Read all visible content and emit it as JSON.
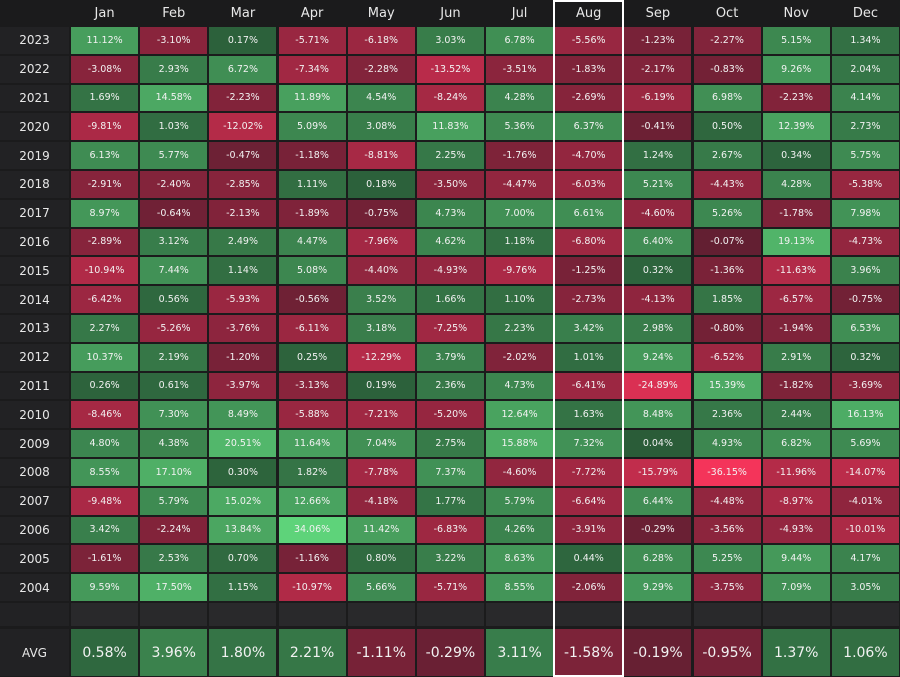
{
  "table": {
    "corner": "",
    "columns": [
      "Jan",
      "Feb",
      "Mar",
      "Apr",
      "May",
      "Jun",
      "Jul",
      "Aug",
      "Sep",
      "Oct",
      "Nov",
      "Dec"
    ],
    "rows": [
      {
        "label": "2023",
        "cells": [
          "11.12%",
          "-3.10%",
          "0.17%",
          "-5.71%",
          "-6.18%",
          "3.03%",
          "6.78%",
          "-5.56%",
          "-1.23%",
          "-2.27%",
          "5.15%",
          "1.34%"
        ]
      },
      {
        "label": "2022",
        "cells": [
          "-3.08%",
          "2.93%",
          "6.72%",
          "-7.34%",
          "-2.28%",
          "-13.52%",
          "-3.51%",
          "-1.83%",
          "-2.17%",
          "-0.83%",
          "9.26%",
          "2.04%"
        ]
      },
      {
        "label": "2021",
        "cells": [
          "1.69%",
          "14.58%",
          "-2.23%",
          "11.89%",
          "4.54%",
          "-8.24%",
          "4.28%",
          "-2.69%",
          "-6.19%",
          "6.98%",
          "-2.23%",
          "4.14%"
        ]
      },
      {
        "label": "2020",
        "cells": [
          "-9.81%",
          "1.03%",
          "-12.02%",
          "5.09%",
          "3.08%",
          "11.83%",
          "5.36%",
          "6.37%",
          "-0.41%",
          "0.50%",
          "12.39%",
          "2.73%"
        ]
      },
      {
        "label": "2019",
        "cells": [
          "6.13%",
          "5.77%",
          "-0.47%",
          "-1.18%",
          "-8.81%",
          "2.25%",
          "-1.76%",
          "-4.70%",
          "1.24%",
          "2.67%",
          "0.34%",
          "5.75%"
        ]
      },
      {
        "label": "2018",
        "cells": [
          "-2.91%",
          "-2.40%",
          "-2.85%",
          "1.11%",
          "0.18%",
          "-3.50%",
          "-4.47%",
          "-6.03%",
          "5.21%",
          "-4.43%",
          "4.28%",
          "-5.38%"
        ]
      },
      {
        "label": "2017",
        "cells": [
          "8.97%",
          "-0.64%",
          "-2.13%",
          "-1.89%",
          "-0.75%",
          "4.73%",
          "7.00%",
          "6.61%",
          "-4.60%",
          "5.26%",
          "-1.78%",
          "7.98%"
        ]
      },
      {
        "label": "2016",
        "cells": [
          "-2.89%",
          "3.12%",
          "2.49%",
          "4.47%",
          "-7.96%",
          "4.62%",
          "1.18%",
          "-6.80%",
          "6.40%",
          "-0.07%",
          "19.13%",
          "-4.73%"
        ]
      },
      {
        "label": "2015",
        "cells": [
          "-10.94%",
          "7.44%",
          "1.14%",
          "5.08%",
          "-4.40%",
          "-4.93%",
          "-9.76%",
          "-1.25%",
          "0.32%",
          "-1.36%",
          "-11.63%",
          "3.96%"
        ]
      },
      {
        "label": "2014",
        "cells": [
          "-6.42%",
          "0.56%",
          "-5.93%",
          "-0.56%",
          "3.52%",
          "1.66%",
          "1.10%",
          "-2.73%",
          "-4.13%",
          "1.85%",
          "-6.57%",
          "-0.75%"
        ]
      },
      {
        "label": "2013",
        "cells": [
          "2.27%",
          "-5.26%",
          "-3.76%",
          "-6.11%",
          "3.18%",
          "-7.25%",
          "2.23%",
          "3.42%",
          "2.98%",
          "-0.80%",
          "-1.94%",
          "6.53%"
        ]
      },
      {
        "label": "2012",
        "cells": [
          "10.37%",
          "2.19%",
          "-1.20%",
          "0.25%",
          "-12.29%",
          "3.79%",
          "-2.02%",
          "1.01%",
          "9.24%",
          "-6.52%",
          "2.91%",
          "0.32%"
        ]
      },
      {
        "label": "2011",
        "cells": [
          "0.26%",
          "0.61%",
          "-3.97%",
          "-3.13%",
          "0.19%",
          "2.36%",
          "4.73%",
          "-6.41%",
          "-24.89%",
          "15.39%",
          "-1.82%",
          "-3.69%"
        ]
      },
      {
        "label": "2010",
        "cells": [
          "-8.46%",
          "7.30%",
          "8.49%",
          "-5.88%",
          "-7.21%",
          "-5.20%",
          "12.64%",
          "1.63%",
          "8.48%",
          "2.36%",
          "2.44%",
          "16.13%"
        ]
      },
      {
        "label": "2009",
        "cells": [
          "4.80%",
          "4.38%",
          "20.51%",
          "11.64%",
          "7.04%",
          "2.75%",
          "15.88%",
          "7.32%",
          "0.04%",
          "4.93%",
          "6.82%",
          "5.69%"
        ]
      },
      {
        "label": "2008",
        "cells": [
          "8.55%",
          "17.10%",
          "0.30%",
          "1.82%",
          "-7.78%",
          "7.37%",
          "-4.60%",
          "-7.72%",
          "-15.79%",
          "-36.15%",
          "-11.96%",
          "-14.07%"
        ]
      },
      {
        "label": "2007",
        "cells": [
          "-9.48%",
          "5.79%",
          "15.02%",
          "12.66%",
          "-4.18%",
          "1.77%",
          "5.79%",
          "-6.64%",
          "6.44%",
          "-4.48%",
          "-8.97%",
          "-4.01%"
        ]
      },
      {
        "label": "2006",
        "cells": [
          "3.42%",
          "-2.24%",
          "13.84%",
          "34.06%",
          "11.42%",
          "-6.83%",
          "4.26%",
          "-3.91%",
          "-0.29%",
          "-3.56%",
          "-4.93%",
          "-10.01%"
        ]
      },
      {
        "label": "2005",
        "cells": [
          "-1.61%",
          "2.53%",
          "0.70%",
          "-1.16%",
          "0.80%",
          "3.22%",
          "8.63%",
          "0.44%",
          "6.28%",
          "5.25%",
          "9.44%",
          "4.17%"
        ]
      },
      {
        "label": "2004",
        "cells": [
          "9.59%",
          "17.50%",
          "1.15%",
          "-10.97%",
          "5.66%",
          "-5.71%",
          "8.55%",
          "-2.06%",
          "9.29%",
          "-3.75%",
          "7.09%",
          "3.05%"
        ]
      }
    ],
    "average": {
      "label": "AVG",
      "cells": [
        "0.58%",
        "3.96%",
        "1.80%",
        "2.21%",
        "-1.11%",
        "-0.29%",
        "3.11%",
        "-1.58%",
        "-0.19%",
        "-0.95%",
        "1.37%",
        "1.06%"
      ]
    },
    "highlighted_column": 7
  }
}
